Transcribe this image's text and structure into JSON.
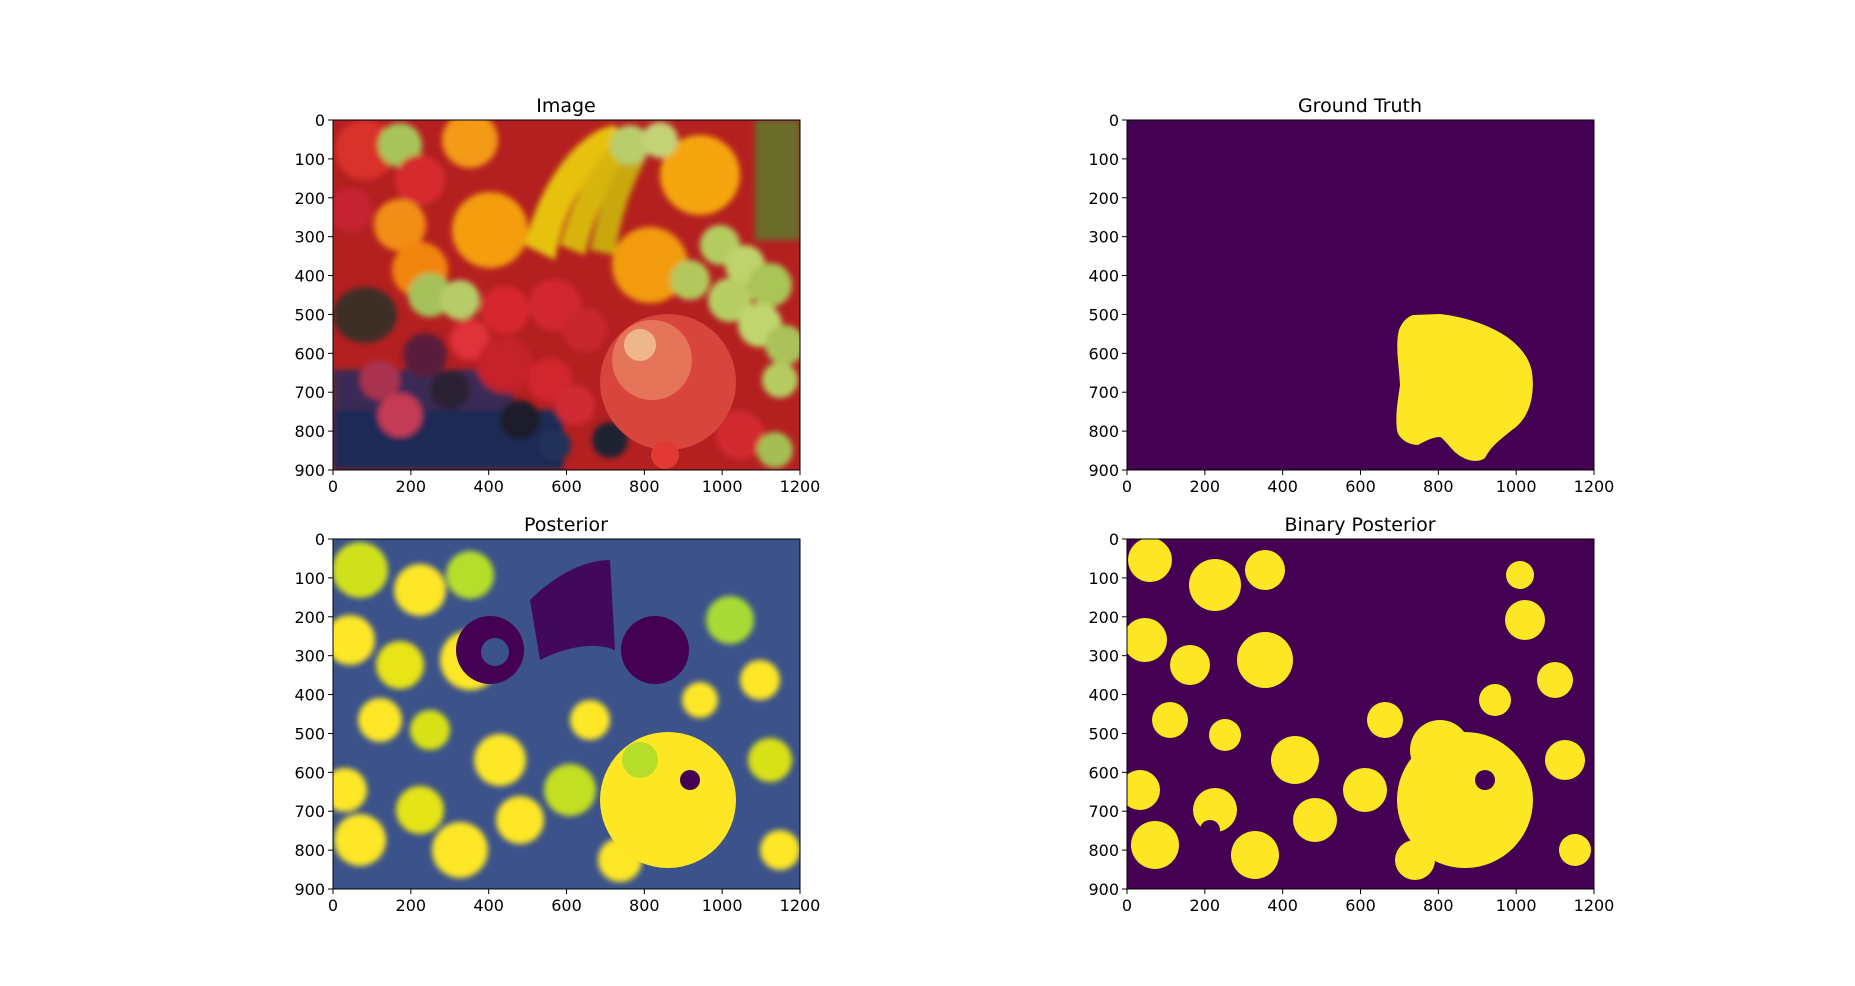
{
  "chart_data": [
    {
      "type": "heatmap",
      "title": "Image",
      "content": "photo-rgb",
      "xlim": [
        0,
        1200
      ],
      "ylim": [
        900,
        0
      ],
      "xticks": [
        0,
        200,
        400,
        600,
        800,
        1000,
        1200
      ],
      "yticks": [
        0,
        100,
        200,
        300,
        400,
        500,
        600,
        700,
        800,
        900
      ]
    },
    {
      "type": "heatmap",
      "title": "Ground Truth",
      "content": "mask",
      "colormap": [
        "#440154",
        "#fde725"
      ],
      "mask_region": {
        "x_range": [
          695,
          1045
        ],
        "y_range": [
          500,
          880
        ],
        "value": 1
      },
      "xlim": [
        0,
        1200
      ],
      "ylim": [
        900,
        0
      ],
      "xticks": [
        0,
        200,
        400,
        600,
        800,
        1000,
        1200
      ],
      "yticks": [
        0,
        100,
        200,
        300,
        400,
        500,
        600,
        700,
        800,
        900
      ]
    },
    {
      "type": "heatmap",
      "title": "Posterior",
      "content": "continuous",
      "colormap": [
        "#440154",
        "#21918c",
        "#fde725"
      ],
      "xlim": [
        0,
        1200
      ],
      "ylim": [
        900,
        0
      ],
      "xticks": [
        0,
        200,
        400,
        600,
        800,
        1000,
        1200
      ],
      "yticks": [
        0,
        100,
        200,
        300,
        400,
        500,
        600,
        700,
        800,
        900
      ]
    },
    {
      "type": "heatmap",
      "title": "Binary Posterior",
      "content": "binary",
      "colormap": [
        "#440154",
        "#fde725"
      ],
      "xlim": [
        0,
        1200
      ],
      "ylim": [
        900,
        0
      ],
      "xticks": [
        0,
        200,
        400,
        600,
        800,
        1000,
        1200
      ],
      "yticks": [
        0,
        100,
        200,
        300,
        400,
        500,
        600,
        700,
        800,
        900
      ]
    }
  ]
}
